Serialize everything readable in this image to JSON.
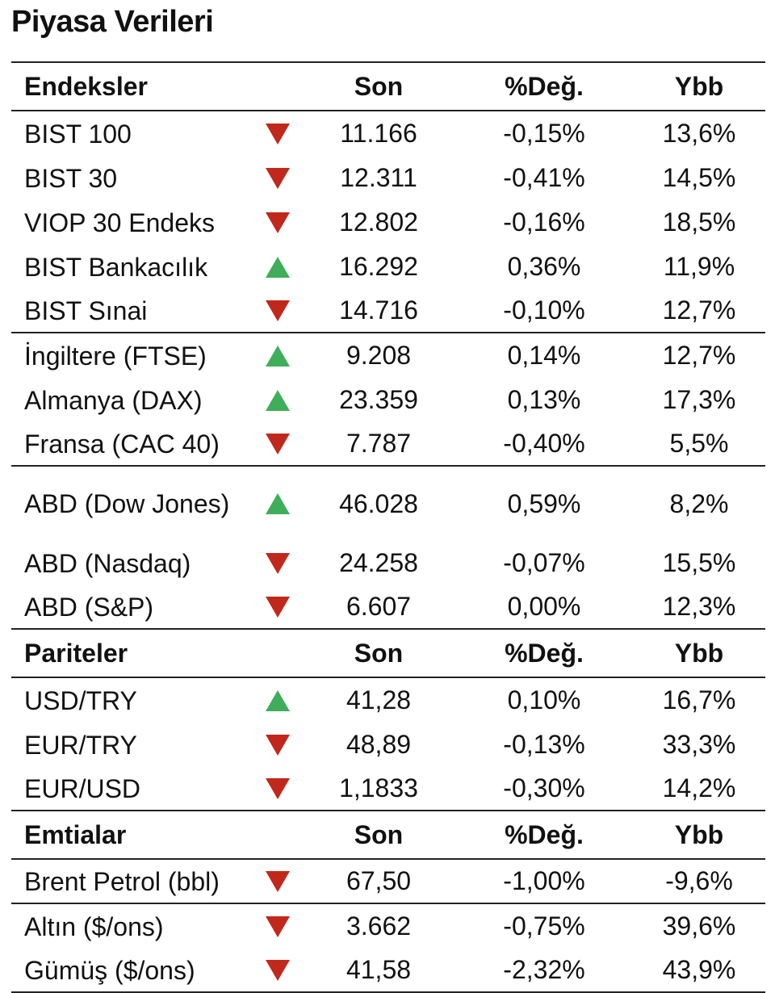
{
  "title": "Piyasa Verileri",
  "colors": {
    "down": "#c0281c",
    "up": "#3fae5a"
  },
  "sections": [
    {
      "header": {
        "name": "Endeksler",
        "son": "Son",
        "deg": "%Değ.",
        "ybb": "Ybb"
      },
      "groups": [
        [
          {
            "name": "BIST 100",
            "dir": "down",
            "son": "11.166",
            "deg": "-0,15%",
            "ybb": "13,6%"
          },
          {
            "name": "BIST 30",
            "dir": "down",
            "son": "12.311",
            "deg": "-0,41%",
            "ybb": "14,5%"
          },
          {
            "name": "VIOP 30 Endeks",
            "dir": "down",
            "son": "12.802",
            "deg": "-0,16%",
            "ybb": "18,5%"
          },
          {
            "name": "BIST Bankacılık",
            "dir": "up",
            "son": "16.292",
            "deg": "0,36%",
            "ybb": "11,9%"
          },
          {
            "name": "BIST Sınai",
            "dir": "down",
            "son": "14.716",
            "deg": "-0,10%",
            "ybb": "12,7%"
          }
        ],
        [
          {
            "name": "İngiltere (FTSE)",
            "dir": "up",
            "son": "9.208",
            "deg": "0,14%",
            "ybb": "12,7%"
          },
          {
            "name": "Almanya (DAX)",
            "dir": "up",
            "son": "23.359",
            "deg": "0,13%",
            "ybb": "17,3%"
          },
          {
            "name": "Fransa (CAC 40)",
            "dir": "down",
            "son": "7.787",
            "deg": "-0,40%",
            "ybb": "5,5%"
          }
        ],
        [
          {
            "name": "ABD (Dow Jones)",
            "dir": "up",
            "son": "46.028",
            "deg": "0,59%",
            "ybb": "8,2%",
            "tall": true
          },
          {
            "name": "ABD (Nasdaq)",
            "dir": "down",
            "son": "24.258",
            "deg": "-0,07%",
            "ybb": "15,5%"
          },
          {
            "name": "ABD (S&P)",
            "dir": "down",
            "son": "6.607",
            "deg": "0,00%",
            "ybb": "12,3%"
          }
        ]
      ]
    },
    {
      "header": {
        "name": "Pariteler",
        "son": "Son",
        "deg": "%Değ.",
        "ybb": "Ybb"
      },
      "groups": [
        [
          {
            "name": "USD/TRY",
            "dir": "up",
            "son": "41,28",
            "deg": "0,10%",
            "ybb": "16,7%"
          },
          {
            "name": "EUR/TRY",
            "dir": "down",
            "son": "48,89",
            "deg": "-0,13%",
            "ybb": "33,3%"
          },
          {
            "name": "EUR/USD",
            "dir": "down",
            "son": "1,1833",
            "deg": "-0,30%",
            "ybb": "14,2%"
          }
        ]
      ]
    },
    {
      "header": {
        "name": "Emtialar",
        "son": "Son",
        "deg": "%Değ.",
        "ybb": "Ybb"
      },
      "groups": [
        [
          {
            "name": "Brent Petrol (bbl)",
            "dir": "down",
            "son": "67,50",
            "deg": "-1,00%",
            "ybb": "-9,6%"
          }
        ],
        [
          {
            "name": "Altın ($/ons)",
            "dir": "down",
            "son": "3.662",
            "deg": "-0,75%",
            "ybb": "39,6%"
          },
          {
            "name": "Gümüş ($/ons)",
            "dir": "down",
            "son": "41,58",
            "deg": "-2,32%",
            "ybb": "43,9%"
          }
        ]
      ]
    }
  ]
}
